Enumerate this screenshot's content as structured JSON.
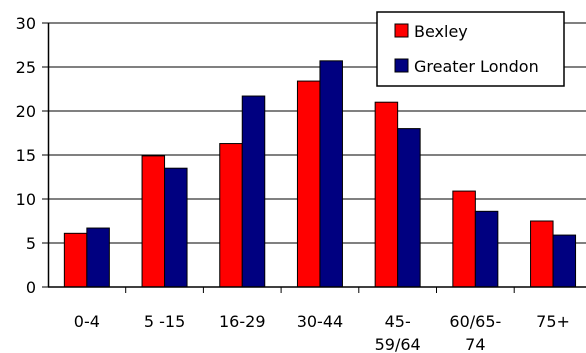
{
  "chart_data": {
    "type": "bar",
    "title": "",
    "xlabel": "",
    "ylabel": "",
    "categories": [
      [
        "0-4"
      ],
      [
        "5 -15"
      ],
      [
        "16-29"
      ],
      [
        "30-44"
      ],
      [
        "45-",
        "59/64"
      ],
      [
        "60/65-",
        "74"
      ],
      [
        "75+"
      ]
    ],
    "series": [
      {
        "name": "Bexley",
        "color": "#ff0000",
        "values": [
          6.1,
          14.9,
          16.3,
          23.4,
          21.0,
          10.9,
          7.5
        ]
      },
      {
        "name": "Greater London",
        "color": "#000080",
        "values": [
          6.7,
          13.5,
          21.7,
          25.7,
          18.0,
          8.6,
          5.9
        ]
      }
    ],
    "ylim": [
      0,
      30
    ],
    "yticks": [
      0,
      5,
      10,
      15,
      20,
      25,
      30
    ],
    "grid": true,
    "legend_position": "top-right"
  }
}
